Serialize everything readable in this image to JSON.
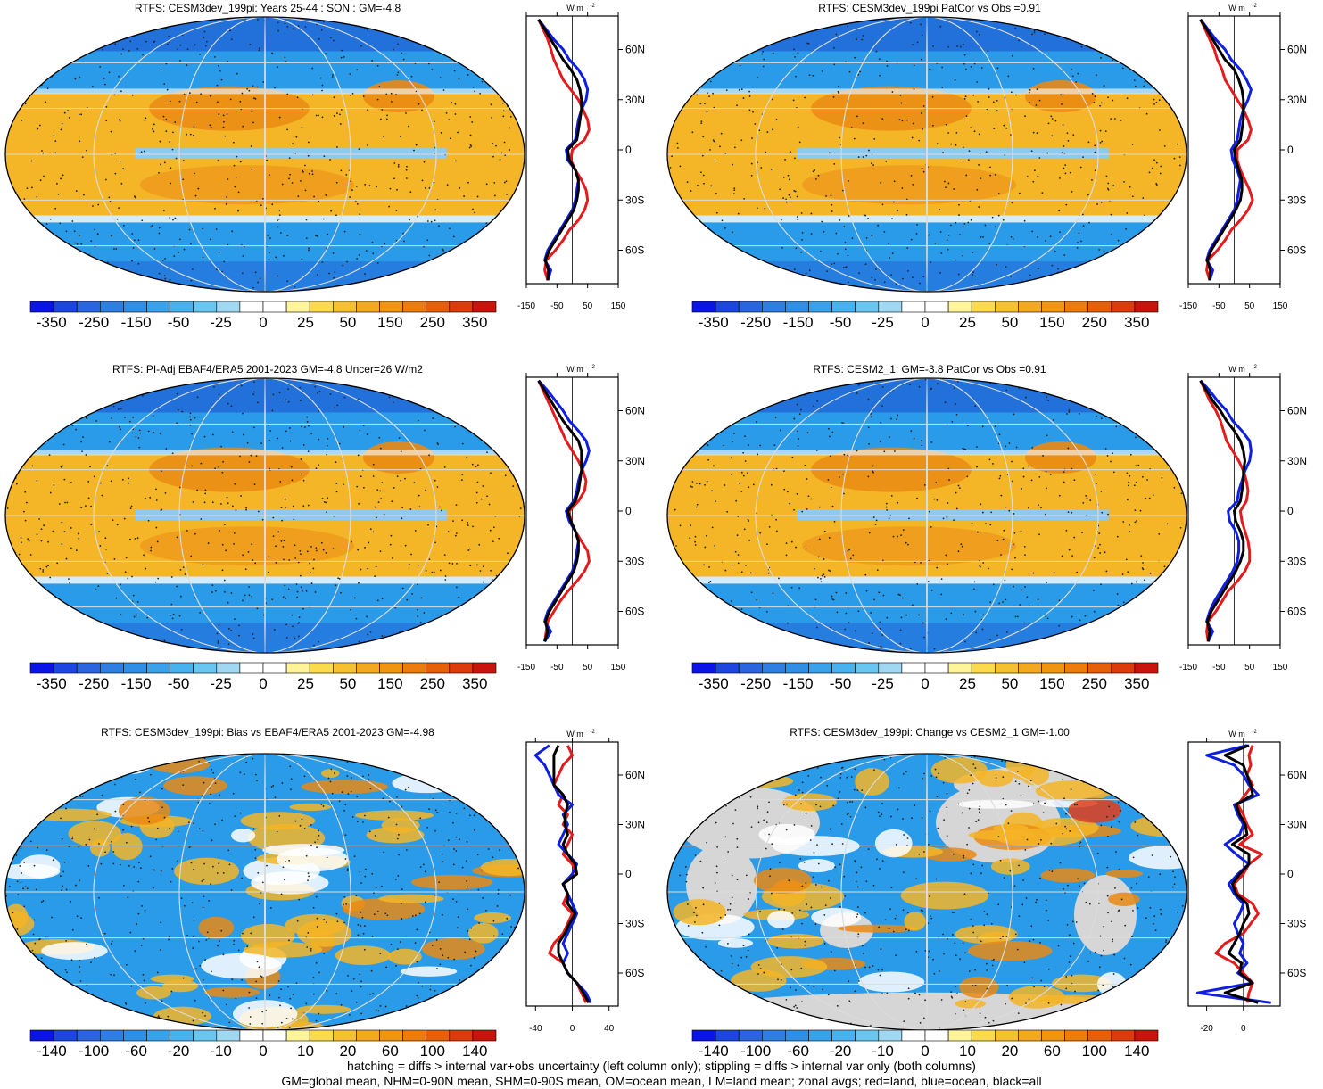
{
  "colors": {
    "ocean_blue": "#2a9be8",
    "deep_blue": "#1f5fd6",
    "warm": "#f4b526",
    "orange": "#e98a13",
    "red_hot": "#e23e1a",
    "white": "#ffffff",
    "land_gray": "#d6d6d6",
    "curve_land": "#e41a1c",
    "curve_ocean": "#0f1fe0",
    "curve_all": "#000000"
  },
  "colorbar_main": {
    "colors": [
      "#0a14e6",
      "#1d45e0",
      "#2a64de",
      "#2f7ee2",
      "#2f8fe6",
      "#3aa2ea",
      "#48b2ee",
      "#68c6f1",
      "#9fd8f0",
      "#ffffff",
      "#ffffff",
      "#fff49a",
      "#fbdb4d",
      "#f6c130",
      "#f3a91f",
      "#f09512",
      "#ec7c0c",
      "#e6600a",
      "#dc3b0b",
      "#c8140d"
    ],
    "labels": [
      "-350",
      "-250",
      "-150",
      "-50",
      "-25",
      "0",
      "25",
      "50",
      "150",
      "250",
      "350"
    ]
  },
  "colorbar_diff": {
    "colors": [
      "#0a14e6",
      "#1d45e0",
      "#2a64de",
      "#2f7ee2",
      "#2f8fe6",
      "#3aa2ea",
      "#48b2ee",
      "#68c6f1",
      "#9fd8f0",
      "#ffffff",
      "#ffffff",
      "#fff49a",
      "#fbdb4d",
      "#f6c130",
      "#f3a91f",
      "#f09512",
      "#ec7c0c",
      "#e6600a",
      "#dc3b0b",
      "#c8140d"
    ],
    "labels": [
      "-140",
      "-100",
      "-60",
      "-20",
      "-10",
      "0",
      "10",
      "20",
      "60",
      "100",
      "140"
    ]
  },
  "lat_labels": [
    "60N",
    "30N",
    "0",
    "30S",
    "60S"
  ],
  "units": "W m",
  "units_sup": "-2",
  "panels": [
    {
      "title": "RTFS: CESM3dev_199pi: Years 25-44 : SON : GM=-4.8",
      "x_ticks": [
        "-150",
        "-50",
        "50",
        "150"
      ],
      "xlim": [
        -150,
        150
      ],
      "kind": "main",
      "cbar": "main",
      "land_gray": false,
      "curves": {
        "lat": [
          78,
          72,
          66,
          60,
          54,
          48,
          42,
          36,
          30,
          24,
          18,
          12,
          6,
          0,
          -6,
          -12,
          -18,
          -24,
          -30,
          -36,
          -42,
          -48,
          -54,
          -60,
          -66,
          -72,
          -78
        ],
        "land": [
          -110,
          -95,
          -80,
          -70,
          -60,
          -45,
          -30,
          -5,
          20,
          35,
          50,
          55,
          40,
          0,
          -5,
          10,
          30,
          45,
          50,
          40,
          20,
          -10,
          -30,
          -55,
          -85,
          -90,
          -80
        ],
        "ocean": [
          -110,
          -85,
          -60,
          -30,
          -10,
          20,
          40,
          50,
          45,
          30,
          20,
          15,
          10,
          -20,
          -15,
          10,
          20,
          15,
          10,
          0,
          -20,
          -40,
          -60,
          -80,
          -90,
          -70,
          -80
        ],
        "all": [
          -110,
          -90,
          -70,
          -50,
          -30,
          -5,
          15,
          25,
          30,
          30,
          25,
          20,
          15,
          -15,
          -10,
          10,
          20,
          20,
          15,
          5,
          -15,
          -35,
          -55,
          -75,
          -88,
          -78,
          -80
        ]
      }
    },
    {
      "title": "RTFS: CESM3dev_199pi PatCor vs Obs =0.91",
      "x_ticks": [
        "-150",
        "-50",
        "50",
        "150"
      ],
      "xlim": [
        -150,
        150
      ],
      "kind": "main",
      "cbar": "main",
      "land_gray": false,
      "curves": {
        "lat": [
          78,
          72,
          66,
          60,
          54,
          48,
          42,
          36,
          30,
          24,
          18,
          12,
          6,
          0,
          -6,
          -12,
          -18,
          -24,
          -30,
          -36,
          -42,
          -48,
          -54,
          -60,
          -66,
          -72,
          -78
        ],
        "land": [
          -110,
          -95,
          -80,
          -65,
          -55,
          -40,
          -30,
          -10,
          10,
          30,
          45,
          55,
          45,
          10,
          10,
          20,
          35,
          50,
          60,
          45,
          20,
          -10,
          -30,
          -55,
          -85,
          -90,
          -80
        ],
        "ocean": [
          -110,
          -85,
          -60,
          -30,
          -10,
          20,
          40,
          55,
          45,
          30,
          20,
          15,
          10,
          -10,
          -5,
          10,
          20,
          15,
          10,
          0,
          -20,
          -40,
          -60,
          -80,
          -90,
          -70,
          -80
        ],
        "all": [
          -110,
          -90,
          -70,
          -50,
          -30,
          0,
          15,
          25,
          30,
          30,
          30,
          25,
          20,
          0,
          5,
          15,
          25,
          25,
          20,
          5,
          -15,
          -35,
          -55,
          -75,
          -88,
          -78,
          -80
        ]
      }
    },
    {
      "title": "RTFS: PI-Adj EBAF4/ERA5 2001-2023 GM=-4.8 Uncer=26 W/m2",
      "x_ticks": [
        "-150",
        "-50",
        "50",
        "150"
      ],
      "xlim": [
        -150,
        150
      ],
      "kind": "main",
      "cbar": "main",
      "land_gray": false,
      "curves": {
        "lat": [
          78,
          72,
          66,
          60,
          54,
          48,
          42,
          36,
          30,
          24,
          18,
          12,
          6,
          0,
          -6,
          -12,
          -18,
          -24,
          -30,
          -36,
          -42,
          -48,
          -54,
          -60,
          -66,
          -72,
          -78
        ],
        "land": [
          -110,
          -95,
          -80,
          -65,
          -50,
          -35,
          -20,
          0,
          20,
          35,
          45,
          40,
          20,
          -10,
          -5,
          10,
          30,
          50,
          55,
          40,
          15,
          -15,
          -40,
          -60,
          -80,
          -85,
          -90
        ],
        "ocean": [
          -110,
          -80,
          -55,
          -30,
          -10,
          20,
          45,
          55,
          45,
          30,
          20,
          15,
          5,
          -20,
          -10,
          10,
          20,
          15,
          10,
          0,
          -20,
          -40,
          -60,
          -80,
          -90,
          -70,
          -90
        ],
        "all": [
          -110,
          -90,
          -70,
          -50,
          -30,
          -5,
          20,
          30,
          30,
          30,
          25,
          20,
          10,
          -15,
          -5,
          10,
          20,
          20,
          15,
          5,
          -15,
          -35,
          -55,
          -75,
          -88,
          -80,
          -90
        ]
      }
    },
    {
      "title": "RTFS: CESM2_1: GM=-3.8 PatCor vs Obs =0.91",
      "x_ticks": [
        "-150",
        "-50",
        "50",
        "150"
      ],
      "xlim": [
        -150,
        150
      ],
      "kind": "main",
      "cbar": "main",
      "land_gray": false,
      "curves": {
        "lat": [
          78,
          72,
          66,
          60,
          54,
          48,
          42,
          36,
          30,
          24,
          18,
          12,
          6,
          0,
          -6,
          -12,
          -18,
          -24,
          -30,
          -36,
          -42,
          -48,
          -54,
          -60,
          -66,
          -72,
          -78
        ],
        "land": [
          -110,
          -95,
          -80,
          -60,
          -45,
          -35,
          -25,
          -5,
          15,
          30,
          40,
          45,
          40,
          20,
          25,
          35,
          45,
          50,
          50,
          35,
          10,
          -20,
          -40,
          -60,
          -85,
          -90,
          -85
        ],
        "ocean": [
          -110,
          -80,
          -55,
          -25,
          -5,
          25,
          50,
          55,
          50,
          35,
          25,
          15,
          10,
          -20,
          -15,
          5,
          15,
          15,
          10,
          -5,
          -25,
          -45,
          -65,
          -80,
          -90,
          -70,
          -85
        ],
        "all": [
          -110,
          -90,
          -70,
          -45,
          -25,
          0,
          20,
          30,
          35,
          30,
          30,
          25,
          20,
          0,
          5,
          20,
          30,
          30,
          20,
          5,
          -15,
          -35,
          -55,
          -75,
          -88,
          -80,
          -85
        ]
      }
    },
    {
      "title": "RTFS: CESM3dev_199pi: Bias vs EBAF4/ERA5 2001-2023  GM=-4.98",
      "x_ticks": [
        "-40",
        "0",
        "40"
      ],
      "xlim": [
        -50,
        50
      ],
      "kind": "diff",
      "cbar": "diff",
      "land_gray": false,
      "curves": {
        "lat": [
          78,
          72,
          66,
          60,
          54,
          48,
          42,
          36,
          30,
          24,
          18,
          12,
          6,
          0,
          -6,
          -12,
          -18,
          -24,
          -30,
          -36,
          -42,
          -48,
          -54,
          -60,
          -66,
          -72,
          -78
        ],
        "land": [
          -5,
          0,
          -10,
          -15,
          -20,
          -10,
          -15,
          -5,
          -10,
          0,
          -5,
          -10,
          0,
          5,
          -10,
          -5,
          -10,
          0,
          -5,
          -10,
          -20,
          -25,
          -10,
          -5,
          5,
          10,
          15
        ],
        "ocean": [
          -25,
          -40,
          -30,
          -25,
          -20,
          -15,
          0,
          -10,
          -5,
          -10,
          -15,
          -5,
          5,
          0,
          -10,
          -5,
          0,
          5,
          0,
          -5,
          -10,
          -5,
          -10,
          -5,
          5,
          15,
          20
        ],
        "all": [
          -15,
          -20,
          -20,
          -20,
          -20,
          -10,
          -5,
          -8,
          -8,
          -5,
          -10,
          -5,
          3,
          5,
          -10,
          -5,
          -5,
          3,
          -3,
          -8,
          -15,
          -15,
          -10,
          -5,
          5,
          12,
          18
        ]
      }
    },
    {
      "title": "RTFS: CESM3dev_199pi: Change vs CESM2_1 GM=-1.00",
      "x_ticks": [
        "-20",
        "0"
      ],
      "xlim": [
        -30,
        20
      ],
      "kind": "diff",
      "cbar": "diff",
      "land_gray": true,
      "curves": {
        "lat": [
          78,
          72,
          66,
          60,
          54,
          48,
          42,
          36,
          30,
          24,
          18,
          12,
          6,
          0,
          -6,
          -12,
          -18,
          -24,
          -30,
          -36,
          -42,
          -48,
          -54,
          -60,
          -66,
          -72,
          -78
        ],
        "land": [
          5,
          3,
          4,
          2,
          5,
          1,
          -3,
          0,
          2,
          5,
          -2,
          10,
          3,
          0,
          -5,
          -3,
          5,
          8,
          4,
          0,
          -10,
          -15,
          -5,
          0,
          5,
          3,
          2
        ],
        "ocean": [
          2,
          -20,
          -5,
          0,
          3,
          8,
          -5,
          -3,
          0,
          -2,
          -10,
          -4,
          3,
          -3,
          -8,
          -5,
          0,
          -2,
          -5,
          -3,
          0,
          -2,
          2,
          -3,
          5,
          -25,
          15
        ],
        "all": [
          3,
          -10,
          0,
          2,
          4,
          5,
          -4,
          -2,
          1,
          2,
          -6,
          3,
          3,
          -2,
          -6,
          -4,
          2,
          3,
          0,
          -2,
          -5,
          -8,
          -1,
          -2,
          5,
          -10,
          8
        ]
      }
    }
  ],
  "footer": {
    "line1": "hatching = diffs > internal var+obs uncertainty (left column only); stippling = diffs > internal var only (both columns)",
    "line2": "GM=global mean, NHM=0-90N mean, SHM=0-90S mean, OM=ocean mean, LM=land mean; zonal avgs; red=land, blue=ocean, black=all"
  }
}
